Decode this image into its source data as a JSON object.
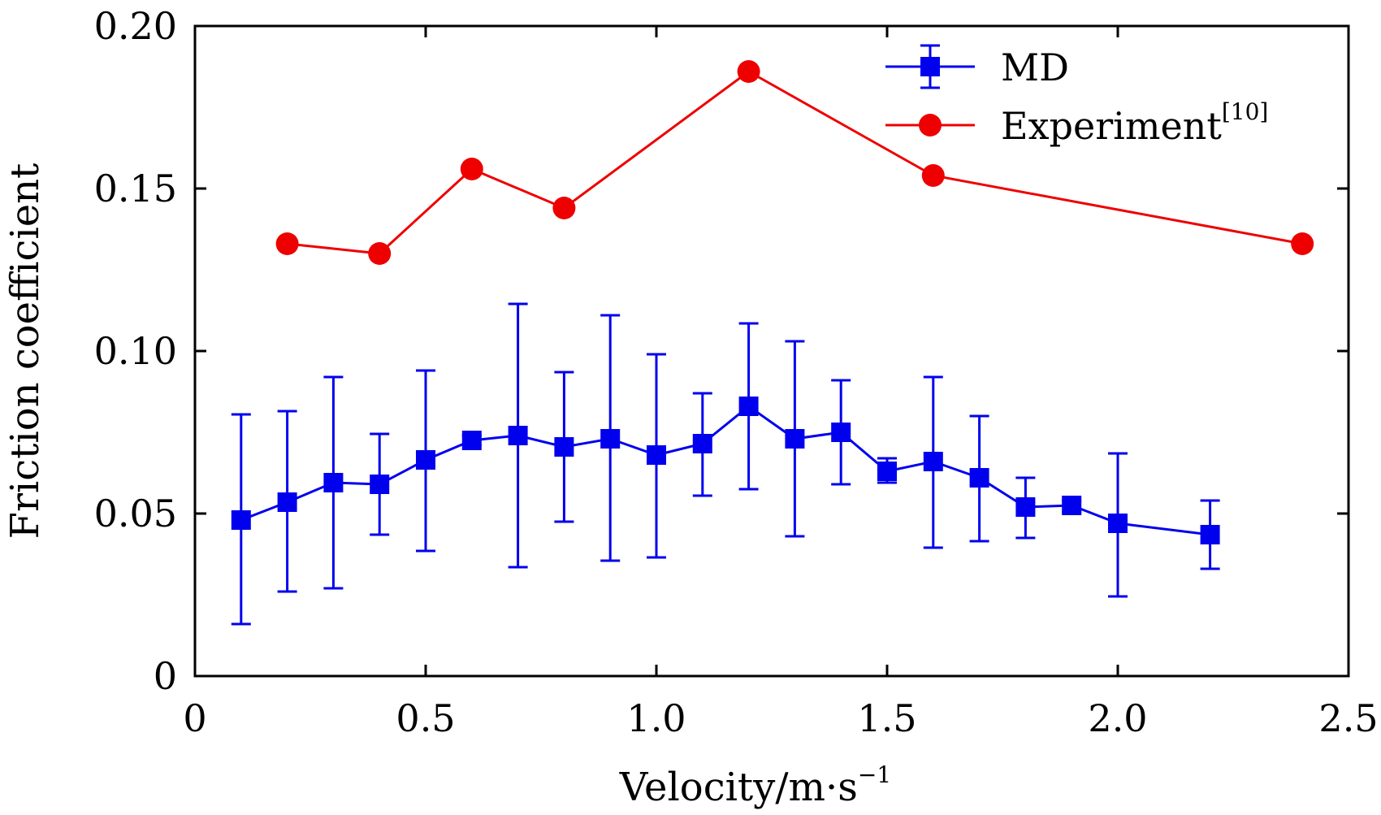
{
  "chart_data": {
    "type": "line",
    "title": "",
    "xlabel": "Velocity/m·s",
    "xlabel_superscript": "−1",
    "ylabel": "Friction coefficient",
    "xlim": [
      0,
      2.5
    ],
    "ylim": [
      0,
      0.2
    ],
    "x_ticks": [
      0,
      0.5,
      1.0,
      1.5,
      2.0,
      2.5
    ],
    "x_tick_labels": [
      "0",
      "0.5",
      "1.0",
      "1.5",
      "2.0",
      "2.5"
    ],
    "y_ticks": [
      0,
      0.05,
      0.1,
      0.15,
      0.2
    ],
    "y_tick_labels": [
      "0",
      "0.05",
      "0.10",
      "0.15",
      "0.20"
    ],
    "grid": false,
    "legend_position": "top-right",
    "series": [
      {
        "name": "MD",
        "marker": "square",
        "color": "#0000ee",
        "x": [
          0.1,
          0.2,
          0.3,
          0.4,
          0.5,
          0.6,
          0.7,
          0.8,
          0.9,
          1.0,
          1.1,
          1.2,
          1.3,
          1.4,
          1.5,
          1.6,
          1.7,
          1.8,
          1.9,
          2.0,
          2.2
        ],
        "y": [
          0.048,
          0.0535,
          0.0595,
          0.059,
          0.0665,
          0.0725,
          0.074,
          0.0705,
          0.073,
          0.068,
          0.0715,
          0.083,
          0.073,
          0.075,
          0.063,
          0.066,
          0.061,
          0.052,
          0.0525,
          0.047,
          0.0435
        ],
        "err_low": [
          0.016,
          0.026,
          0.027,
          0.0435,
          0.0385,
          0.071,
          0.0335,
          0.0475,
          0.0355,
          0.0365,
          0.0555,
          0.0575,
          0.043,
          0.059,
          0.0595,
          0.0395,
          0.0415,
          0.0425,
          0.0505,
          0.0245,
          0.033
        ],
        "err_high": [
          0.0805,
          0.0815,
          0.092,
          0.0745,
          0.094,
          0.074,
          0.1145,
          0.0935,
          0.111,
          0.099,
          0.087,
          0.1085,
          0.103,
          0.091,
          0.067,
          0.092,
          0.08,
          0.061,
          0.054,
          0.0685,
          0.054
        ]
      },
      {
        "name": "Experiment",
        "name_superscript": "[10]",
        "marker": "circle",
        "color": "#ee0000",
        "x": [
          0.2,
          0.4,
          0.6,
          0.8,
          1.2,
          1.6,
          2.4
        ],
        "y": [
          0.133,
          0.13,
          0.156,
          0.144,
          0.186,
          0.154,
          0.133
        ]
      }
    ]
  }
}
